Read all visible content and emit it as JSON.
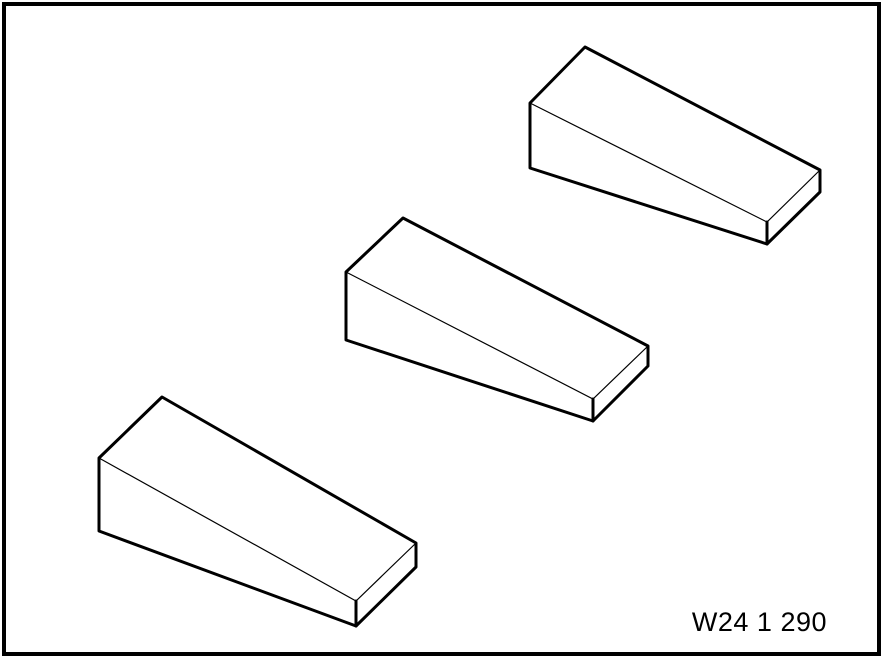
{
  "figure": {
    "reference_code": "W24 1 290",
    "parts": [
      {
        "name": "wedge-block"
      },
      {
        "name": "wedge-block"
      },
      {
        "name": "wedge-block"
      }
    ]
  }
}
